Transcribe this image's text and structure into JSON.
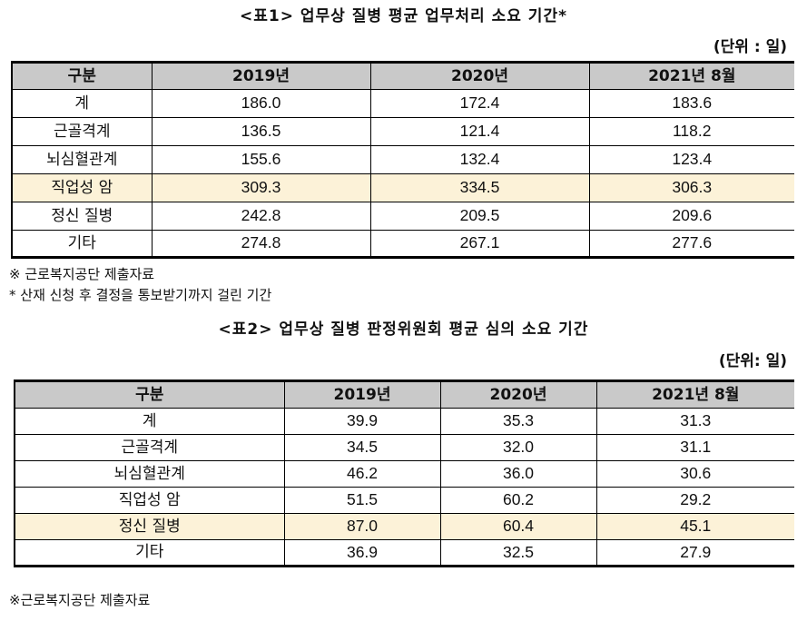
{
  "table1": {
    "title": "<표1> 업무상 질병 평균 업무처리 소요 기간*",
    "unit": "(단위 : 일)",
    "headers": [
      "구분",
      "2019년",
      "2020년",
      "2021년 8월"
    ],
    "rows": [
      [
        "계",
        "186.0",
        "172.4",
        "183.6"
      ],
      [
        "근골격계",
        "136.5",
        "121.4",
        "118.2"
      ],
      [
        "뇌심혈관계",
        "155.6",
        "132.4",
        "123.4"
      ],
      [
        "직업성 암",
        "309.3",
        "334.5",
        "306.3"
      ],
      [
        "정신 질병",
        "242.8",
        "209.5",
        "209.6"
      ],
      [
        "기타",
        "274.8",
        "267.1",
        "277.6"
      ]
    ],
    "notes": [
      "※ 근로복지공단 제출자료",
      "* 산재 신청 후 결정을 통보받기까지 걸린 기간"
    ]
  },
  "table2": {
    "title": "<표2> 업무상 질병 판정위원회 평균 심의 소요 기간",
    "unit": "(단위: 일)",
    "headers": [
      "구분",
      "2019년",
      "2020년",
      "2021년 8월"
    ],
    "rows": [
      [
        "계",
        "39.9",
        "35.3",
        "31.3"
      ],
      [
        "근골격계",
        "34.5",
        "32.0",
        "31.1"
      ],
      [
        "뇌심혈관계",
        "46.2",
        "36.0",
        "30.6"
      ],
      [
        "직업성 암",
        "51.5",
        "60.2",
        "29.2"
      ],
      [
        "정신 질병",
        "87.0",
        "60.4",
        "45.1"
      ],
      [
        "기타",
        "36.9",
        "32.5",
        "27.9"
      ]
    ],
    "notes": [
      "※근로복지공단 제출자료"
    ]
  },
  "highlight_color": "#fcf2d8",
  "header_color": "#c9c9c9"
}
